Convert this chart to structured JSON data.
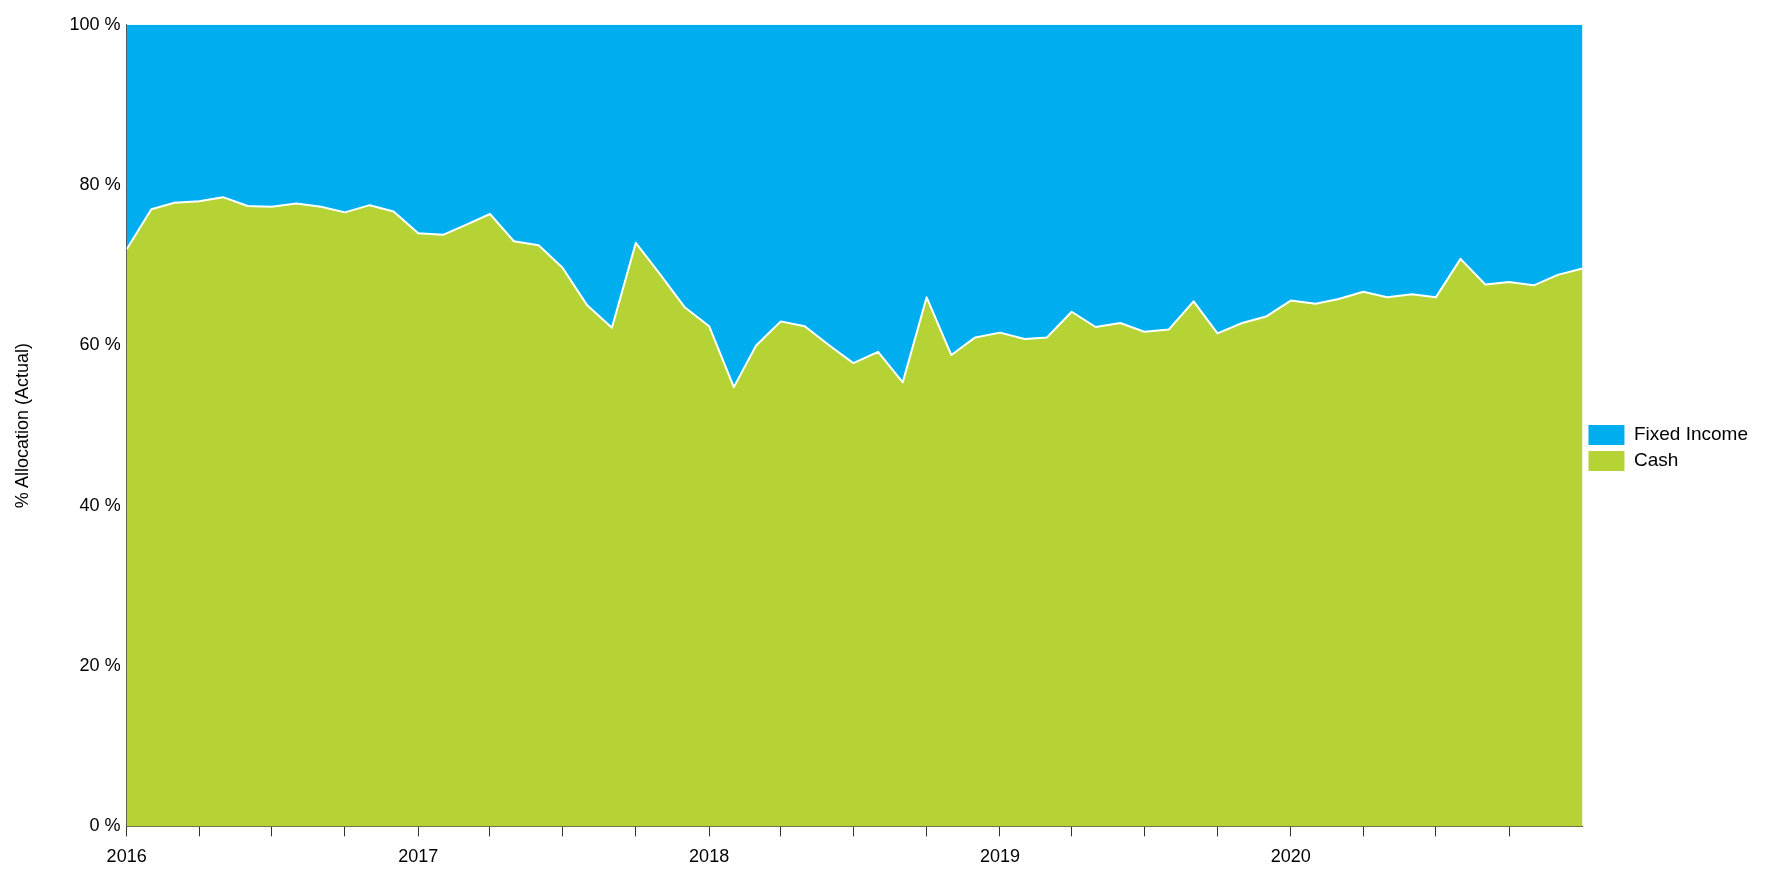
{
  "chart_data": {
    "type": "area",
    "ylabel": "% Allocation (Actual)",
    "stacked": true,
    "legend": "right",
    "grid": false,
    "x": [
      "2016-01",
      "2016-02",
      "2016-03",
      "2016-04",
      "2016-05",
      "2016-06",
      "2016-07",
      "2016-08",
      "2016-09",
      "2016-10",
      "2016-11",
      "2016-12",
      "2017-01",
      "2017-02",
      "2017-03",
      "2017-04",
      "2017-05",
      "2017-06",
      "2017-07",
      "2017-08",
      "2017-09",
      "2017-10",
      "2017-11",
      "2017-12",
      "2018-01",
      "2018-02",
      "2018-03",
      "2018-04",
      "2018-05",
      "2018-06",
      "2018-07",
      "2018-08",
      "2018-09",
      "2018-10",
      "2018-11",
      "2018-12",
      "2019-01",
      "2019-02",
      "2019-03",
      "2019-04",
      "2019-05",
      "2019-06",
      "2019-07",
      "2019-08",
      "2019-09",
      "2019-10",
      "2019-11",
      "2019-12",
      "2020-01",
      "2020-02",
      "2020-03",
      "2020-04",
      "2020-05",
      "2020-06",
      "2020-07",
      "2020-08",
      "2020-09",
      "2020-10",
      "2020-11",
      "2020-12",
      "2021-01"
    ],
    "xlim": [
      "2016-01",
      "2021-01"
    ],
    "xticks": [
      {
        "value": "2016",
        "label": "2016"
      },
      {
        "value": "2016-04",
        "label": null
      },
      {
        "value": "2016-07",
        "label": null
      },
      {
        "value": "2016-10",
        "label": null
      },
      {
        "value": "2017",
        "label": "2017"
      },
      {
        "value": "2017-04",
        "label": null
      },
      {
        "value": "2017-07",
        "label": null
      },
      {
        "value": "2017-10",
        "label": null
      },
      {
        "value": "2018",
        "label": "2018"
      },
      {
        "value": "2018-04",
        "label": null
      },
      {
        "value": "2018-07",
        "label": null
      },
      {
        "value": "2018-10",
        "label": null
      },
      {
        "value": "2019",
        "label": "2019"
      },
      {
        "value": "2019-04",
        "label": null
      },
      {
        "value": "2019-07",
        "label": null
      },
      {
        "value": "2019-10",
        "label": null
      },
      {
        "value": "2020",
        "label": "2020"
      },
      {
        "value": "2020-04",
        "label": null
      },
      {
        "value": "2020-07",
        "label": null
      },
      {
        "value": "2020-10",
        "label": null
      }
    ],
    "ylim": [
      0,
      100
    ],
    "yticks": [
      {
        "value": 0,
        "label": "0 %"
      },
      {
        "value": 20,
        "label": "20 %"
      },
      {
        "value": 40,
        "label": "40 %"
      },
      {
        "value": 60,
        "label": "60 %"
      },
      {
        "value": 80,
        "label": "80 %"
      },
      {
        "value": 100,
        "label": "100 %"
      }
    ],
    "series": [
      {
        "name": "Cash",
        "color": "#b5d334",
        "values": [
          72,
          77,
          77.8,
          78,
          78.5,
          77.4,
          77.3,
          77.7,
          77.3,
          76.6,
          77.5,
          76.7,
          74,
          73.8,
          75,
          76.4,
          73,
          72.5,
          69.7,
          65,
          62.2,
          72.8,
          68.8,
          64.8,
          62.4,
          54.8,
          60,
          63,
          62.4,
          60,
          57.8,
          59.2,
          55.4,
          66,
          58.8,
          61,
          61.6,
          60.8,
          61,
          64.2,
          62.3,
          62.8,
          61.7,
          62,
          65.5,
          61.5,
          62.8,
          63.6,
          65.6,
          65.2,
          65.8,
          66.7,
          66,
          66.4,
          66,
          70.8,
          67.6,
          67.9,
          67.5,
          68.8,
          69.6
        ]
      },
      {
        "name": "Fixed Income",
        "color": "#00aeef",
        "values": [
          28,
          23,
          22.2,
          22,
          21.5,
          22.6,
          22.7,
          22.3,
          22.7,
          23.4,
          22.5,
          23.3,
          26,
          26.2,
          25,
          23.6,
          27,
          27.5,
          30.3,
          35,
          37.8,
          27.2,
          31.2,
          35.2,
          37.6,
          45.2,
          40,
          37,
          37.6,
          40,
          42.2,
          40.8,
          44.6,
          34,
          41.2,
          39,
          38.4,
          39.2,
          39,
          35.8,
          37.7,
          37.2,
          38.3,
          38,
          34.5,
          38.5,
          37.2,
          36.4,
          34.4,
          34.8,
          34.2,
          33.3,
          34,
          33.6,
          34,
          29.2,
          32.4,
          32.1,
          32.5,
          31.2,
          30.4
        ]
      }
    ]
  }
}
